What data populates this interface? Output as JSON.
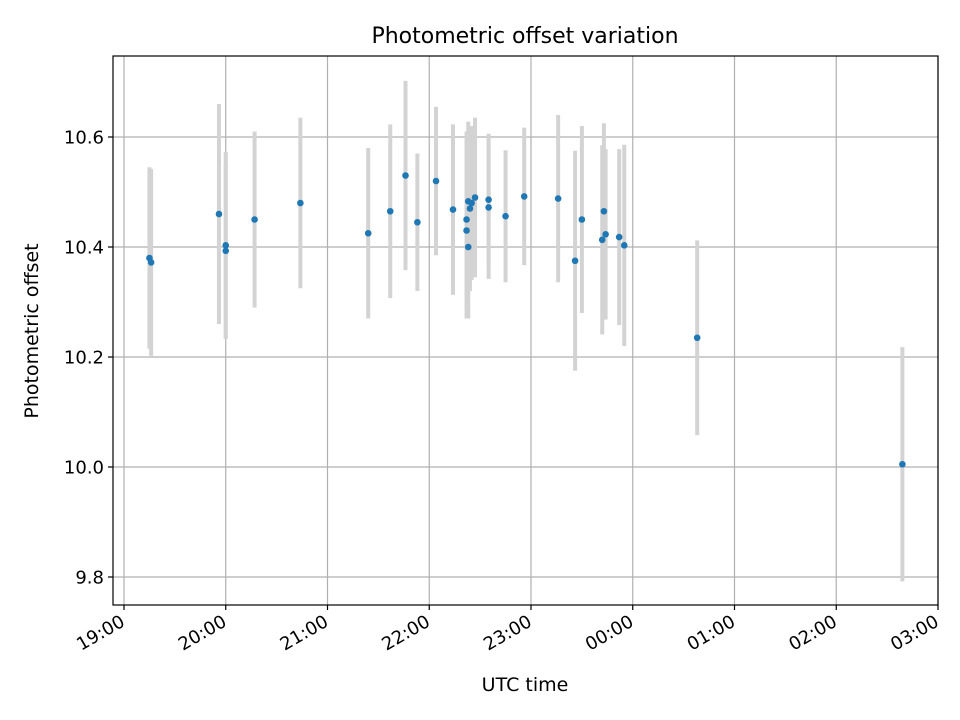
{
  "chart_data": {
    "type": "scatter",
    "title": "Photometric offset variation",
    "xlabel": "UTC time",
    "ylabel": "Photometric offset",
    "x_ticks": [
      "19:00",
      "20:00",
      "21:00",
      "22:00",
      "23:00",
      "00:00",
      "01:00",
      "02:00",
      "03:00"
    ],
    "y_ticks": [
      "9.8",
      "10.0",
      "10.2",
      "10.4",
      "10.6"
    ],
    "xlim": [
      "19:00",
      "03:00"
    ],
    "ylim": [
      9.75,
      10.75
    ],
    "grid": true,
    "colors": {
      "point": "#1f77b4",
      "error_bar": "#d3d3d3",
      "grid": "#b0b0b0",
      "axis": "#000000"
    },
    "series": [
      {
        "points": [
          {
            "x": "19:15",
            "y": 10.38,
            "err": 0.165
          },
          {
            "x": "19:16",
            "y": 10.372,
            "err": 0.17
          },
          {
            "x": "19:56",
            "y": 10.46,
            "err": 0.2
          },
          {
            "x": "20:00",
            "y": 10.403,
            "err": 0.17
          },
          {
            "x": "20:00",
            "y": 10.393,
            "err": 0.16
          },
          {
            "x": "20:17",
            "y": 10.45,
            "err": 0.16
          },
          {
            "x": "20:44",
            "y": 10.48,
            "err": 0.155
          },
          {
            "x": "21:24",
            "y": 10.425,
            "err": 0.155
          },
          {
            "x": "21:37",
            "y": 10.465,
            "err": 0.158
          },
          {
            "x": "21:46",
            "y": 10.53,
            "err": 0.172
          },
          {
            "x": "21:53",
            "y": 10.445,
            "err": 0.125
          },
          {
            "x": "22:04",
            "y": 10.52,
            "err": 0.135
          },
          {
            "x": "22:14",
            "y": 10.468,
            "err": 0.155
          },
          {
            "x": "22:22",
            "y": 10.45,
            "err": 0.16
          },
          {
            "x": "22:22",
            "y": 10.43,
            "err": 0.16
          },
          {
            "x": "22:23",
            "y": 10.4,
            "err": 0.13
          },
          {
            "x": "22:23",
            "y": 10.483,
            "err": 0.145
          },
          {
            "x": "22:24",
            "y": 10.47,
            "err": 0.15
          },
          {
            "x": "22:25",
            "y": 10.48,
            "err": 0.14
          },
          {
            "x": "22:27",
            "y": 10.49,
            "err": 0.145
          },
          {
            "x": "22:35",
            "y": 10.486,
            "err": 0.12
          },
          {
            "x": "22:35",
            "y": 10.472,
            "err": 0.13
          },
          {
            "x": "22:45",
            "y": 10.456,
            "err": 0.12
          },
          {
            "x": "22:56",
            "y": 10.492,
            "err": 0.125
          },
          {
            "x": "23:16",
            "y": 10.488,
            "err": 0.152
          },
          {
            "x": "23:26",
            "y": 10.375,
            "err": 0.2
          },
          {
            "x": "23:30",
            "y": 10.45,
            "err": 0.17
          },
          {
            "x": "23:42",
            "y": 10.413,
            "err": 0.172
          },
          {
            "x": "23:43",
            "y": 10.465,
            "err": 0.16
          },
          {
            "x": "23:44",
            "y": 10.423,
            "err": 0.155
          },
          {
            "x": "23:52",
            "y": 10.418,
            "err": 0.16
          },
          {
            "x": "23:55",
            "y": 10.403,
            "err": 0.183
          },
          {
            "x": "00:38",
            "y": 10.235,
            "err": 0.177
          },
          {
            "x": "02:39",
            "y": 10.005,
            "err": 0.213
          }
        ]
      }
    ]
  }
}
